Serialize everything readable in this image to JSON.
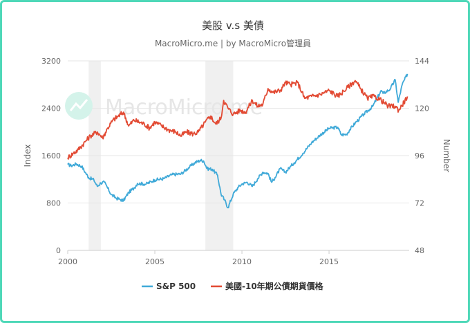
{
  "title": "美股 v.s 美債",
  "subtitle": "MacroMicro.me | by MacroMicro管理員",
  "watermark": "MacroMicro.me",
  "chart_data": {
    "type": "line",
    "x_ticks": [
      "2000",
      "2005",
      "2010",
      "2015"
    ],
    "xlim": [
      2000,
      2019.6
    ],
    "left_axis": {
      "label": "Index",
      "ticks": [
        "0",
        "800",
        "1600",
        "2400",
        "3200"
      ],
      "ylim": [
        0,
        3200
      ]
    },
    "right_axis": {
      "label": "Number",
      "ticks": [
        "48",
        "72",
        "96",
        "120",
        "144"
      ],
      "ylim": [
        48,
        144
      ]
    },
    "recessions": [
      [
        2001.2,
        2001.9
      ],
      [
        2007.9,
        2009.5
      ]
    ],
    "series": [
      {
        "name": "S&P 500",
        "axis": "left",
        "color": "#3fa9d8",
        "x": [
          2000,
          2000.2,
          2000.5,
          2000.8,
          2001.0,
          2001.2,
          2001.5,
          2001.7,
          2001.9,
          2002.1,
          2002.3,
          2002.5,
          2002.8,
          2003.0,
          2003.2,
          2003.5,
          2003.8,
          2004.0,
          2004.5,
          2005.0,
          2005.5,
          2006.0,
          2006.5,
          2007.0,
          2007.3,
          2007.6,
          2007.8,
          2008.0,
          2008.3,
          2008.6,
          2008.8,
          2009.0,
          2009.2,
          2009.5,
          2009.8,
          2010.0,
          2010.3,
          2010.6,
          2010.9,
          2011.2,
          2011.5,
          2011.7,
          2011.9,
          2012.2,
          2012.5,
          2012.8,
          2013.0,
          2013.5,
          2014.0,
          2014.5,
          2015.0,
          2015.5,
          2015.7,
          2016.0,
          2016.2,
          2016.5,
          2017.0,
          2017.5,
          2018.0,
          2018.1,
          2018.5,
          2018.8,
          2018.97,
          2019.2,
          2019.5
        ],
        "values": [
          1450,
          1430,
          1460,
          1420,
          1320,
          1230,
          1190,
          1080,
          1140,
          1150,
          1050,
          940,
          880,
          860,
          840,
          980,
          1050,
          1130,
          1120,
          1190,
          1210,
          1280,
          1290,
          1410,
          1480,
          1520,
          1510,
          1380,
          1370,
          1270,
          950,
          850,
          720,
          950,
          1070,
          1120,
          1150,
          1080,
          1210,
          1320,
          1300,
          1150,
          1230,
          1380,
          1320,
          1420,
          1480,
          1640,
          1820,
          1950,
          2060,
          2080,
          1950,
          1960,
          2040,
          2150,
          2300,
          2430,
          2700,
          2650,
          2720,
          2880,
          2500,
          2800,
          2980
        ]
      },
      {
        "name": "美國-10年期公債期貨價格",
        "axis": "right",
        "color": "#e24a33",
        "x": [
          2000,
          2000.3,
          2000.6,
          2001.0,
          2001.3,
          2001.7,
          2002.0,
          2002.3,
          2002.6,
          2002.9,
          2003.2,
          2003.5,
          2003.8,
          2004.1,
          2004.4,
          2004.7,
          2005.0,
          2005.4,
          2005.8,
          2006.2,
          2006.5,
          2006.8,
          2007.2,
          2007.5,
          2007.9,
          2008.2,
          2008.5,
          2008.8,
          2008.95,
          2009.2,
          2009.5,
          2009.9,
          2010.2,
          2010.6,
          2010.9,
          2011.2,
          2011.5,
          2011.8,
          2012.2,
          2012.5,
          2012.8,
          2013.2,
          2013.6,
          2014.0,
          2014.5,
          2015.0,
          2015.5,
          2016.0,
          2016.5,
          2016.8,
          2017.2,
          2017.6,
          2018.0,
          2018.4,
          2018.8,
          2019.0,
          2019.3,
          2019.5
        ],
        "values": [
          95,
          97,
          99,
          103,
          106,
          108,
          105,
          110,
          114,
          116,
          118,
          111,
          114,
          113,
          112,
          110,
          113,
          111,
          109,
          108,
          106,
          108,
          107,
          108,
          113,
          116,
          112,
          115,
          124,
          120,
          117,
          119,
          118,
          124,
          121,
          122,
          130,
          128,
          129,
          133,
          132,
          133,
          125,
          126,
          127,
          129,
          126,
          130,
          134,
          130,
          125,
          126,
          124,
          121,
          121,
          119,
          123,
          126
        ]
      }
    ]
  }
}
